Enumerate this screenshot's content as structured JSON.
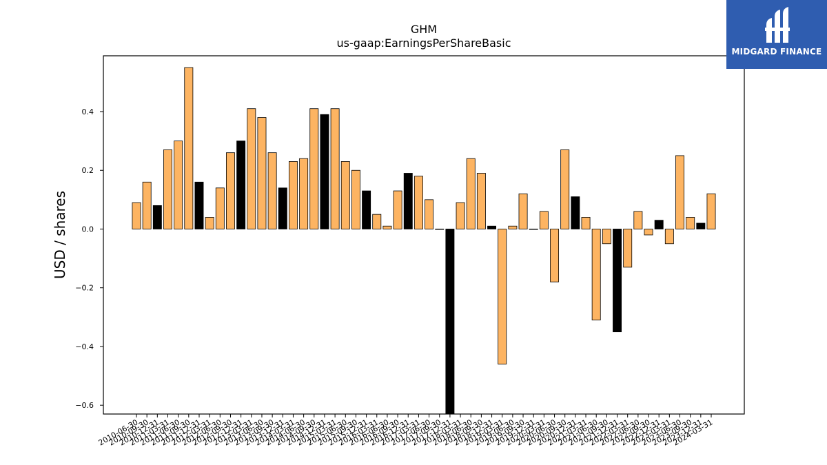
{
  "colors": {
    "bar_default": "#fdb462",
    "bar_highlight": "#000000",
    "bar_edge": "#000000",
    "logo_bg": "#2f5db0",
    "logo_text": "#ffffff"
  },
  "logo": {
    "text": "MIDGARD FINANCE",
    "icon": "midgard-logo-icon"
  },
  "chart_data": {
    "type": "bar",
    "title": "GHM",
    "subtitle": "us-gaap:EarningsPerShareBasic",
    "xlabel": "",
    "ylabel": "USD / shares",
    "ylim": [
      -0.63,
      0.59
    ],
    "yticks": [
      -0.6,
      -0.4,
      -0.2,
      0.0,
      0.2,
      0.4
    ],
    "grid": false,
    "categories": [
      "2010-06-30",
      "2010-09-30",
      "2010-12-31",
      "2011-03-31",
      "2011-06-30",
      "2011-09-30",
      "2011-12-31",
      "2012-03-31",
      "2012-06-30",
      "2012-09-30",
      "2012-12-31",
      "2013-03-31",
      "2013-06-30",
      "2013-09-30",
      "2013-12-31",
      "2014-03-31",
      "2014-06-30",
      "2014-09-30",
      "2014-12-31",
      "2015-03-31",
      "2015-06-30",
      "2015-09-30",
      "2015-12-31",
      "2016-03-31",
      "2016-06-30",
      "2016-09-30",
      "2016-12-31",
      "2017-03-31",
      "2017-06-30",
      "2017-09-30",
      "2017-12-31",
      "2018-03-31",
      "2018-06-30",
      "2018-09-30",
      "2018-12-31",
      "2019-03-31",
      "2019-06-30",
      "2019-09-30",
      "2019-12-31",
      "2020-03-31",
      "2020-06-30",
      "2020-09-30",
      "2020-12-31",
      "2021-03-31",
      "2021-06-30",
      "2021-09-30",
      "2021-12-31",
      "2022-03-31",
      "2022-06-30",
      "2022-09-30",
      "2022-12-31",
      "2023-03-31",
      "2023-06-30",
      "2023-09-30",
      "2023-12-31",
      "2024-03-31"
    ],
    "values": [
      0.09,
      0.16,
      0.08,
      0.27,
      0.3,
      0.55,
      0.16,
      0.04,
      0.14,
      0.26,
      0.3,
      0.41,
      0.38,
      0.26,
      0.14,
      0.23,
      0.24,
      0.41,
      0.39,
      0.41,
      0.23,
      0.2,
      0.13,
      0.05,
      0.01,
      0.13,
      0.19,
      0.18,
      0.1,
      0.0,
      -0.7,
      0.09,
      0.24,
      0.19,
      0.01,
      -0.46,
      0.01,
      0.12,
      0.0,
      0.06,
      -0.18,
      0.27,
      0.11,
      0.04,
      -0.31,
      -0.05,
      -0.35,
      -0.13,
      0.06,
      -0.02,
      0.03,
      -0.05,
      0.25,
      0.04,
      0.02,
      0.12
    ],
    "highlight": [
      false,
      false,
      true,
      false,
      false,
      false,
      true,
      false,
      false,
      false,
      true,
      false,
      false,
      false,
      true,
      false,
      false,
      false,
      true,
      false,
      false,
      false,
      true,
      false,
      false,
      false,
      true,
      false,
      false,
      false,
      true,
      false,
      false,
      false,
      true,
      false,
      false,
      false,
      false,
      false,
      false,
      false,
      true,
      false,
      false,
      false,
      true,
      false,
      false,
      false,
      true,
      false,
      false,
      false,
      true,
      false
    ]
  }
}
